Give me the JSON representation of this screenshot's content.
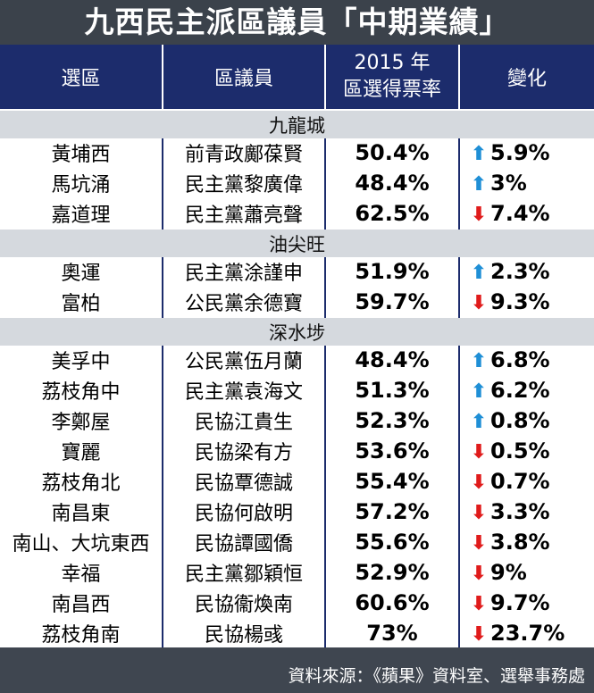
{
  "title": "九西民主派區議員「中期業績」",
  "header": {
    "col1": "選區",
    "col2": "區議員",
    "col3_line1": "2015 年",
    "col3_line2": "區選得票率",
    "col4": "變化"
  },
  "source": "資料來源：《蘋果》資料室、選舉事務處",
  "colors": {
    "header_bg": "#1c2c6c",
    "section_bg": "#d5d9de",
    "up_arrow": "#1f8fd6",
    "down_arrow": "#e01b1b",
    "frame_bg": "#3f4650"
  },
  "chart_data": {
    "type": "table",
    "columns": [
      "選區",
      "區議員",
      "2015 年區選得票率",
      "變化"
    ],
    "sections": [
      {
        "name": "九龍城",
        "rows": [
          {
            "district": "黃埔西",
            "member": "前青政鄺葆賢",
            "rate": "50.4%",
            "direction": "up",
            "change": "5.9%"
          },
          {
            "district": "馬坑涌",
            "member": "民主黨黎廣偉",
            "rate": "48.4%",
            "direction": "up",
            "change": "3%"
          },
          {
            "district": "嘉道理",
            "member": "民主黨蕭亮聲",
            "rate": "62.5%",
            "direction": "down",
            "change": "7.4%"
          }
        ]
      },
      {
        "name": "油尖旺",
        "rows": [
          {
            "district": "奧運",
            "member": "民主黨涂謹申",
            "rate": "51.9%",
            "direction": "up",
            "change": "2.3%"
          },
          {
            "district": "富柏",
            "member": "公民黨余德寶",
            "rate": "59.7%",
            "direction": "down",
            "change": "9.3%"
          }
        ]
      },
      {
        "name": "深水埗",
        "rows": [
          {
            "district": "美孚中",
            "member": "公民黨伍月蘭",
            "rate": "48.4%",
            "direction": "up",
            "change": "6.8%"
          },
          {
            "district": "荔枝角中",
            "member": "民主黨袁海文",
            "rate": "51.3%",
            "direction": "up",
            "change": "6.2%"
          },
          {
            "district": "李鄭屋",
            "member": "民協江貴生",
            "rate": "52.3%",
            "direction": "up",
            "change": "0.8%"
          },
          {
            "district": "寶麗",
            "member": "民協梁有方",
            "rate": "53.6%",
            "direction": "down",
            "change": "0.5%"
          },
          {
            "district": "荔枝角北",
            "member": "民協覃德誠",
            "rate": "55.4%",
            "direction": "down",
            "change": "0.7%"
          },
          {
            "district": "南昌東",
            "member": "民協何啟明",
            "rate": "57.2%",
            "direction": "down",
            "change": "3.3%"
          },
          {
            "district": "南山、大坑東西",
            "member": "民協譚國僑",
            "rate": "55.6%",
            "direction": "down",
            "change": "3.8%"
          },
          {
            "district": "幸福",
            "member": "民主黨鄒穎恒",
            "rate": "52.9%",
            "direction": "down",
            "change": "9%"
          },
          {
            "district": "南昌西",
            "member": "民協衞煥南",
            "rate": "60.6%",
            "direction": "down",
            "change": "9.7%"
          },
          {
            "district": "荔枝角南",
            "member": "民協楊彧",
            "rate": "73%",
            "direction": "down",
            "change": "23.7%"
          }
        ]
      }
    ]
  }
}
